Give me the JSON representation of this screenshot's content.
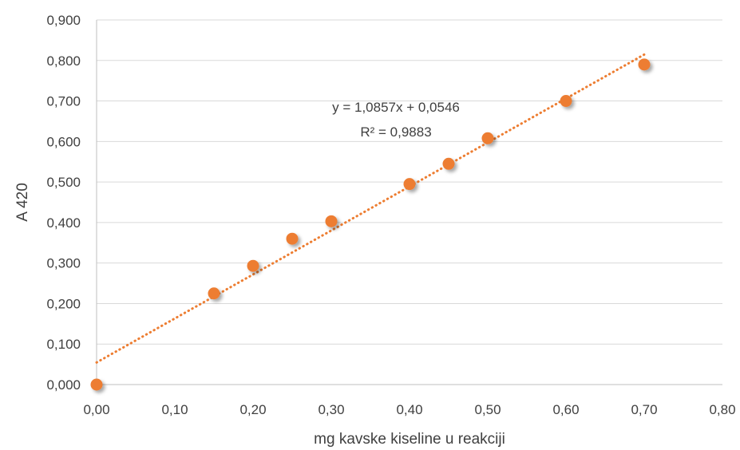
{
  "chart_data": {
    "type": "scatter",
    "title": "",
    "xlabel": "mg kavske kiseline u reakciji",
    "ylabel": "A 420",
    "xlim": [
      0,
      0.8
    ],
    "ylim": [
      0,
      0.9
    ],
    "x_ticks": [
      "0,00",
      "0,10",
      "0,20",
      "0,30",
      "0,40",
      "0,50",
      "0,60",
      "0,70",
      "0,80"
    ],
    "y_ticks": [
      "0,000",
      "0,100",
      "0,200",
      "0,300",
      "0,400",
      "0,500",
      "0,600",
      "0,700",
      "0,800",
      "0,900"
    ],
    "grid": "horizontal",
    "legend": "none",
    "series": [
      {
        "x": [
          0.0,
          0.15,
          0.2,
          0.25,
          0.3,
          0.4,
          0.45,
          0.5,
          0.6,
          0.7
        ],
        "y": [
          0.0,
          0.225,
          0.293,
          0.36,
          0.403,
          0.495,
          0.545,
          0.608,
          0.7,
          0.79
        ]
      }
    ],
    "trendline": {
      "type": "linear",
      "slope": 1.0857,
      "intercept": 0.0546,
      "x_range": [
        0,
        0.7
      ],
      "style": "dotted"
    },
    "annotations": {
      "equation": "y = 1,0857x + 0,0546",
      "r_squared": "R² = 0,9883"
    },
    "colors": {
      "marker": "#ED7D31",
      "trendline": "#ED7D31",
      "grid": "#D9D9D9",
      "text": "#404040"
    }
  }
}
